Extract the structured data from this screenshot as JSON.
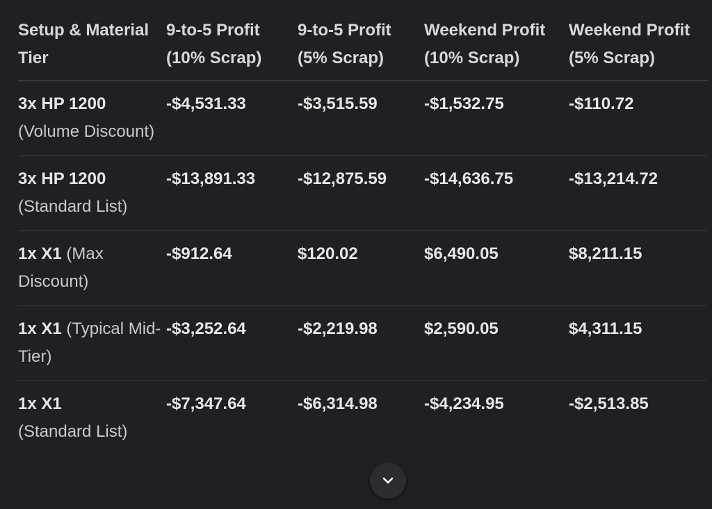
{
  "table": {
    "headers": [
      "Setup & Material Tier",
      "9-to-5 Profit (10% Scrap)",
      "9-to-5 Profit (5% Scrap)",
      "Weekend Profit (10% Scrap)",
      "Weekend Profit (5% Scrap)"
    ],
    "rows": [
      {
        "setup": "3x HP 1200",
        "tier": "(Volume Discount)",
        "values": [
          "-$4,531.33",
          "-$3,515.59",
          "-$1,532.75",
          "-$110.72"
        ]
      },
      {
        "setup": "3x HP 1200",
        "tier": "(Standard List)",
        "values": [
          "-$13,891.33",
          "-$12,875.59",
          "-$14,636.75",
          "-$13,214.72"
        ]
      },
      {
        "setup": "1x X1",
        "tier": "(Max Discount)",
        "values": [
          "-$912.64",
          "$120.02",
          "$6,490.05",
          "$8,211.15"
        ]
      },
      {
        "setup": "1x X1",
        "tier": "(Typical Mid-Tier)",
        "values": [
          "-$3,252.64",
          "-$2,219.98",
          "$2,590.05",
          "$4,311.15"
        ]
      },
      {
        "setup": "1x X1",
        "tier": "(Standard List)",
        "values": [
          "-$7,347.64",
          "-$6,314.98",
          "-$4,234.95",
          "-$2,513.85"
        ]
      }
    ]
  },
  "scroll_button": {
    "icon": "chevron-down-icon"
  },
  "colors": {
    "background": "#1f2023",
    "text": "#e3e3e3",
    "divider": "#3b3d41"
  }
}
